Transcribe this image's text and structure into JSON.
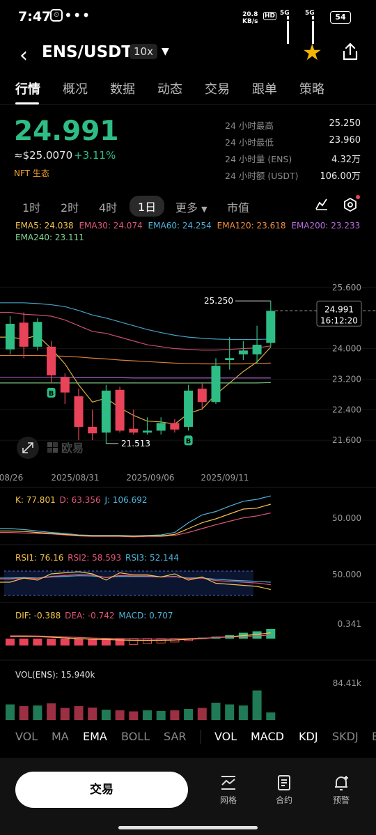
{
  "status": {
    "time": "7:47",
    "dots": "•••",
    "net_speed": "20.8",
    "net_unit": "KB/s",
    "hd": "HD",
    "sig1": "5G",
    "sig2": "5G",
    "battery": "54"
  },
  "header": {
    "title": "ENS/USDT",
    "leverage": "10x"
  },
  "tabs": [
    "行情",
    "概况",
    "数据",
    "动态",
    "交易",
    "跟单",
    "策略"
  ],
  "ticker": {
    "price": "24.991",
    "approx": "≈$25.0070",
    "change": "+3.11%",
    "tag": "NFT 生态",
    "stats": [
      {
        "label": "24 小时最高",
        "value": "25.250"
      },
      {
        "label": "24 小时最低",
        "value": "23.960"
      },
      {
        "label": "24 小时量 (ENS)",
        "value": "4.32万"
      },
      {
        "label": "24 小时额 (USDT)",
        "value": "106.00万"
      }
    ]
  },
  "periods": [
    "1时",
    "2时",
    "4时",
    "1日",
    "更多",
    "市值"
  ],
  "ema": {
    "ema5": "EMA5: 24.038",
    "ema30": "EMA30: 24.074",
    "ema60": "EMA60: 24.254",
    "ema120": "EMA120: 23.618",
    "ema200": "EMA200: 23.233",
    "ema240": "EMA240: 23.111"
  },
  "kdj": {
    "k": "K: 77.801",
    "d": "D: 63.356",
    "j": "J: 106.692",
    "axis": "50.000"
  },
  "rsi": {
    "r1": "RSI1: 76.16",
    "r2": "RSI2: 58.593",
    "r3": "RSI3: 52.144",
    "axis": "50.000"
  },
  "macd": {
    "dif": "DIF: -0.388",
    "dea": "DEA: -0.742",
    "macd": "MACD: 0.707",
    "axis": "0.341"
  },
  "vol": {
    "label": "VOL(ENS): 15.940k",
    "axis": "84.41k"
  },
  "chart_data": {
    "type": "candlestick",
    "y_ticks": [
      "25.600",
      "24.000",
      "23.200",
      "22.400",
      "21.600"
    ],
    "x_labels": [
      "08/26",
      "2025/08/31",
      "2025/09/06",
      "2025/09/11"
    ],
    "last_price": "24.991",
    "countdown": "16:12:20",
    "high_label": "25.250",
    "low_label": "21.513",
    "ylim": [
      21.0,
      26.2
    ],
    "candles": [
      {
        "o": 23.98,
        "c": 24.65,
        "h": 24.85,
        "l": 23.85
      },
      {
        "o": 24.68,
        "c": 24.05,
        "h": 24.95,
        "l": 23.75
      },
      {
        "o": 24.05,
        "c": 24.7,
        "h": 24.8,
        "l": 23.95
      },
      {
        "o": 24.05,
        "c": 23.3,
        "h": 24.2,
        "l": 23.1
      },
      {
        "o": 23.25,
        "c": 22.85,
        "h": 23.35,
        "l": 22.55
      },
      {
        "o": 22.75,
        "c": 21.95,
        "h": 22.95,
        "l": 21.6
      },
      {
        "o": 21.95,
        "c": 21.78,
        "h": 22.4,
        "l": 21.6
      },
      {
        "o": 21.8,
        "c": 22.9,
        "h": 23.05,
        "l": 21.51
      },
      {
        "o": 22.92,
        "c": 21.85,
        "h": 23.0,
        "l": 21.8
      },
      {
        "o": 21.9,
        "c": 21.8,
        "h": 22.4,
        "l": 21.75
      },
      {
        "o": 21.8,
        "c": 21.85,
        "h": 22.2,
        "l": 21.75
      },
      {
        "o": 21.85,
        "c": 22.05,
        "h": 22.2,
        "l": 21.75
      },
      {
        "o": 22.05,
        "c": 21.88,
        "h": 22.15,
        "l": 21.8
      },
      {
        "o": 21.95,
        "c": 22.9,
        "h": 23.05,
        "l": 21.85
      },
      {
        "o": 22.95,
        "c": 22.6,
        "h": 23.1,
        "l": 22.4
      },
      {
        "o": 22.6,
        "c": 23.55,
        "h": 23.75,
        "l": 22.55
      },
      {
        "o": 23.7,
        "c": 23.75,
        "h": 24.3,
        "l": 23.45
      },
      {
        "o": 23.85,
        "c": 23.95,
        "h": 24.2,
        "l": 23.7
      },
      {
        "o": 23.85,
        "c": 24.1,
        "h": 24.6,
        "l": 23.6
      },
      {
        "o": 24.15,
        "c": 24.99,
        "h": 25.25,
        "l": 24.05
      }
    ],
    "ema_lines": [
      {
        "name": "EMA5",
        "color": "#f2c24a",
        "values": [
          24.3,
          24.25,
          24.35,
          24.0,
          23.6,
          23.05,
          22.6,
          22.7,
          22.45,
          22.25,
          22.1,
          22.08,
          22.02,
          22.3,
          22.42,
          22.8,
          23.1,
          23.4,
          23.65,
          24.04
        ]
      },
      {
        "name": "EMA30",
        "color": "#e0567a",
        "values": [
          24.95,
          24.9,
          24.88,
          24.85,
          24.75,
          24.6,
          24.45,
          24.4,
          24.3,
          24.2,
          24.1,
          24.05,
          24.0,
          23.98,
          23.96,
          23.96,
          23.98,
          24.0,
          24.02,
          24.07
        ]
      },
      {
        "name": "EMA60",
        "color": "#4fb3d9",
        "values": [
          25.2,
          25.2,
          25.18,
          25.15,
          25.1,
          25.0,
          24.88,
          24.8,
          24.7,
          24.6,
          24.5,
          24.42,
          24.35,
          24.3,
          24.27,
          24.25,
          24.24,
          24.24,
          24.24,
          24.25
        ]
      },
      {
        "name": "EMA120",
        "color": "#f08c3c",
        "values": [
          23.82,
          23.82,
          23.82,
          23.81,
          23.8,
          23.78,
          23.75,
          23.73,
          23.7,
          23.68,
          23.66,
          23.64,
          23.62,
          23.61,
          23.6,
          23.6,
          23.6,
          23.6,
          23.61,
          23.62
        ]
      },
      {
        "name": "EMA200",
        "color": "#b86ee0",
        "values": [
          23.25,
          23.25,
          23.25,
          23.25,
          23.25,
          23.24,
          23.24,
          23.24,
          23.24,
          23.23,
          23.23,
          23.23,
          23.23,
          23.23,
          23.23,
          23.23,
          23.23,
          23.23,
          23.23,
          23.23
        ]
      },
      {
        "name": "EMA240",
        "color": "#7ed38e",
        "values": [
          23.1,
          23.1,
          23.1,
          23.1,
          23.1,
          23.1,
          23.1,
          23.1,
          23.1,
          23.1,
          23.1,
          23.1,
          23.1,
          23.1,
          23.1,
          23.1,
          23.1,
          23.1,
          23.1,
          23.11
        ]
      }
    ],
    "vol": [
      0.45,
      0.4,
      0.42,
      0.48,
      0.35,
      0.4,
      0.36,
      0.3,
      0.28,
      0.25,
      0.28,
      0.26,
      0.28,
      0.32,
      0.35,
      0.5,
      0.45,
      0.42,
      0.85,
      0.22
    ]
  },
  "bottom_tabs": [
    "VOL",
    "MA",
    "EMA",
    "BOLL",
    "SAR",
    "VOL",
    "MACD",
    "KDJ",
    "SKDJ",
    "B"
  ],
  "actions": {
    "trade": "交易",
    "grid": "网格",
    "contract": "合约",
    "alert": "预警"
  },
  "watermark": "欧易"
}
